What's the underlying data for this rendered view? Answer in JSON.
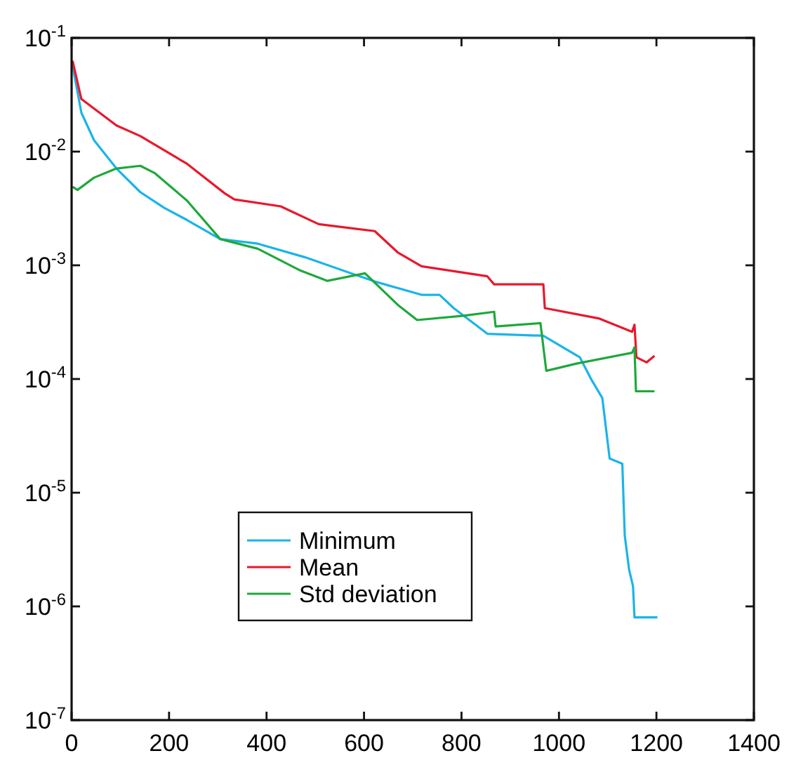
{
  "chart_data": {
    "type": "line",
    "xlim": [
      0,
      1400
    ],
    "xticks": [
      0,
      200,
      400,
      600,
      800,
      1000,
      1200,
      1400
    ],
    "ylim": [
      1e-07,
      0.1
    ],
    "log": "y",
    "yticks": [
      {
        "value": 0.1,
        "label": "10$^{-1}$"
      },
      {
        "value": 0.01,
        "label": "10$^{-2}$"
      },
      {
        "value": 0.001,
        "label": "10$^{-3}$"
      },
      {
        "value": 0.0001,
        "label": "10$^{-4}$"
      },
      {
        "value": 1e-05,
        "label": "10$^{-5}$"
      },
      {
        "value": 1e-06,
        "label": "10$^{-6}$"
      },
      {
        "value": 1e-07,
        "label": "10$^{-7}$"
      }
    ],
    "legend": "bottom",
    "grid": false,
    "series": [
      {
        "name": "Minimum",
        "color": "#1ab4e8",
        "x": [
          2,
          20,
          46,
          92,
          141,
          190,
          237,
          305,
          382,
          478,
          622,
          718,
          755,
          784,
          853,
          968,
          1043,
          1067,
          1089,
          1104,
          1130,
          1135,
          1144,
          1152,
          1155,
          1202
        ],
        "values": [
          0.057,
          0.022,
          0.0126,
          0.0071,
          0.0044,
          0.0032,
          0.0025,
          0.0017,
          0.00155,
          0.00118,
          0.00072,
          0.00055,
          0.00055,
          0.00042,
          0.00025,
          0.00024,
          0.000155,
          9.8e-05,
          6.8e-05,
          2e-05,
          1.8e-05,
          4.2e-06,
          2.1e-06,
          1.5e-06,
          8e-07,
          8e-07
        ]
      },
      {
        "name": "Mean",
        "color": "#e8182c",
        "x": [
          2,
          20,
          92,
          141,
          237,
          314,
          334,
          429,
          507,
          622,
          669,
          718,
          853,
          867,
          968,
          971,
          1083,
          1150,
          1155,
          1159,
          1180,
          1196
        ],
        "values": [
          0.063,
          0.029,
          0.017,
          0.0137,
          0.0078,
          0.0043,
          0.0038,
          0.0033,
          0.0023,
          0.002,
          0.0013,
          0.00098,
          0.0008,
          0.00068,
          0.00068,
          0.00042,
          0.00034,
          0.00026,
          0.0003,
          0.000155,
          0.00014,
          0.00016
        ]
      },
      {
        "name": "Std deviation",
        "color": "#1ea83c",
        "x": [
          2,
          12,
          46,
          92,
          141,
          170,
          237,
          305,
          382,
          467,
          525,
          602,
          669,
          709,
          804,
          867,
          870,
          962,
          974,
          1037,
          1150,
          1155,
          1158,
          1196
        ],
        "values": [
          0.0049,
          0.0046,
          0.0059,
          0.0071,
          0.0075,
          0.0065,
          0.0037,
          0.0017,
          0.0014,
          0.00091,
          0.00073,
          0.00085,
          0.00045,
          0.00033,
          0.00036,
          0.00039,
          0.00029,
          0.00031,
          0.000118,
          0.000137,
          0.00017,
          0.00019,
          7.8e-05,
          7.8e-05
        ]
      }
    ]
  }
}
